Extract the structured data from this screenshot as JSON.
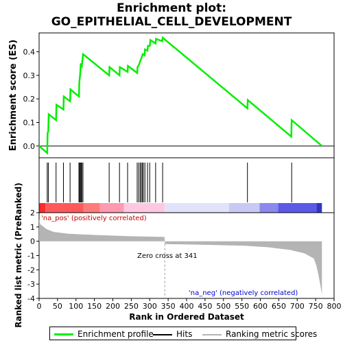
{
  "title_line1": "Enrichment plot:",
  "title_line2": "GO_EPITHELIAL_CELL_DEVELOPMENT",
  "colors": {
    "profile": "#00ee00",
    "hits": "#000000",
    "ranking": "#b4b4b4",
    "pos_label": "#cc0000",
    "neg_label": "#0000cc",
    "zero_line": "#999999"
  },
  "chart_data": [
    {
      "type": "line",
      "name": "enrichment-score-panel",
      "ylabel": "Enrichment score (ES)",
      "xlim": [
        0,
        800
      ],
      "ylim": [
        -0.05,
        0.48
      ],
      "yticks": [
        0.0,
        0.1,
        0.2,
        0.3,
        0.4
      ],
      "ytick_labels": [
        "0.0",
        "0.1",
        "0.2",
        "0.3",
        "0.4"
      ],
      "grid": false,
      "series": [
        {
          "name": "Enrichment profile",
          "points": [
            [
              0,
              0.0
            ],
            [
              22,
              -0.03
            ],
            [
              23,
              0.055
            ],
            [
              25,
              0.063
            ],
            [
              26,
              0.135
            ],
            [
              46,
              0.11
            ],
            [
              47,
              0.175
            ],
            [
              66,
              0.155
            ],
            [
              67,
              0.21
            ],
            [
              84,
              0.19
            ],
            [
              85,
              0.24
            ],
            [
              108,
              0.21
            ],
            [
              109,
              0.27
            ],
            [
              111,
              0.3
            ],
            [
              112,
              0.32
            ],
            [
              113,
              0.35
            ],
            [
              116,
              0.34
            ],
            [
              119,
              0.39
            ],
            [
              190,
              0.3
            ],
            [
              191,
              0.335
            ],
            [
              218,
              0.3
            ],
            [
              219,
              0.335
            ],
            [
              240,
              0.315
            ],
            [
              241,
              0.34
            ],
            [
              266,
              0.31
            ],
            [
              267,
              0.335
            ],
            [
              271,
              0.345
            ],
            [
              274,
              0.36
            ],
            [
              278,
              0.375
            ],
            [
              281,
              0.39
            ],
            [
              286,
              0.385
            ],
            [
              287,
              0.41
            ],
            [
              294,
              0.405
            ],
            [
              295,
              0.425
            ],
            [
              300,
              0.425
            ],
            [
              302,
              0.45
            ],
            [
              316,
              0.435
            ],
            [
              317,
              0.455
            ],
            [
              334,
              0.445
            ],
            [
              335,
              0.46
            ],
            [
              565,
              0.16
            ],
            [
              566,
              0.195
            ],
            [
              684,
              0.04
            ],
            [
              685,
              0.11
            ],
            [
              767,
              0.0
            ]
          ]
        }
      ]
    },
    {
      "type": "hits",
      "name": "hits-panel",
      "xlim": [
        0,
        800
      ],
      "hit_positions": [
        22,
        25,
        46,
        66,
        84,
        108,
        110,
        112,
        114,
        116,
        119,
        190,
        218,
        240,
        266,
        270,
        274,
        277,
        280,
        283,
        287,
        294,
        300,
        316,
        335,
        565,
        685
      ],
      "heatmap_gradient": [
        "#ff3333",
        "#ff6b6b",
        "#ff9d9d",
        "#ffc6dd",
        "#f4e6f4",
        "#e6e6fb",
        "#c9c9f7",
        "#9c9cf0",
        "#6a6ae6",
        "#3333dd"
      ],
      "gradient_blocks": [
        [
          0,
          3
        ],
        [
          3,
          17
        ],
        [
          17,
          120
        ],
        [
          120,
          165
        ],
        [
          165,
          230
        ],
        [
          230,
          340
        ],
        [
          340,
          515
        ],
        [
          515,
          598
        ],
        [
          598,
          648
        ],
        [
          648,
          752
        ],
        [
          752,
          767
        ]
      ],
      "gradient_block_colors": [
        "#dd0000",
        "#ff2a2a",
        "#ff5a5a",
        "#ff7b7b",
        "#ff9ab0",
        "#ffc8e0",
        "#e2e2fb",
        "#c9c9f6",
        "#8a8aee",
        "#5a5ae6",
        "#3333cc"
      ]
    },
    {
      "type": "area",
      "name": "ranked-list-panel",
      "xlabel": "Rank in Ordered Dataset",
      "ylabel": "Ranked list metric (PreRanked)",
      "xlim": [
        0,
        800
      ],
      "ylim": [
        -4,
        2
      ],
      "xticks": [
        0,
        50,
        100,
        150,
        200,
        250,
        300,
        350,
        400,
        450,
        500,
        550,
        600,
        650,
        700,
        750,
        800
      ],
      "xtick_labels": [
        "0",
        "50",
        "100",
        "150",
        "200",
        "250",
        "300",
        "350",
        "400",
        "450",
        "500",
        "550",
        "600",
        "650",
        "700",
        "750",
        "800"
      ],
      "yticks": [
        2,
        1,
        0,
        -1,
        -2,
        -3,
        -4
      ],
      "ytick_labels": [
        "2",
        "1",
        "0",
        "-1",
        "-2",
        "-3",
        "-4"
      ],
      "grid": false,
      "series": [
        {
          "name": "Ranking metric scores",
          "points": [
            [
              0,
              1.55
            ],
            [
              3,
              1.2
            ],
            [
              10,
              1.05
            ],
            [
              20,
              0.85
            ],
            [
              40,
              0.65
            ],
            [
              80,
              0.52
            ],
            [
              150,
              0.44
            ],
            [
              250,
              0.35
            ],
            [
              340,
              0.3
            ],
            [
              341,
              -0.2
            ],
            [
              450,
              -0.25
            ],
            [
              560,
              -0.32
            ],
            [
              620,
              -0.42
            ],
            [
              680,
              -0.6
            ],
            [
              720,
              -0.85
            ],
            [
              745,
              -1.2
            ],
            [
              752,
              -1.7
            ],
            [
              758,
              -2.4
            ],
            [
              763,
              -3.1
            ],
            [
              767,
              -3.75
            ]
          ]
        }
      ],
      "annotations": [
        "'na_pos' (positively correlated)",
        "Zero cross at 341",
        "'na_neg' (negatively correlated)"
      ],
      "zero_cross": 341
    }
  ],
  "legend": {
    "items": [
      "Enrichment profile",
      "Hits",
      "Ranking metric scores"
    ]
  }
}
